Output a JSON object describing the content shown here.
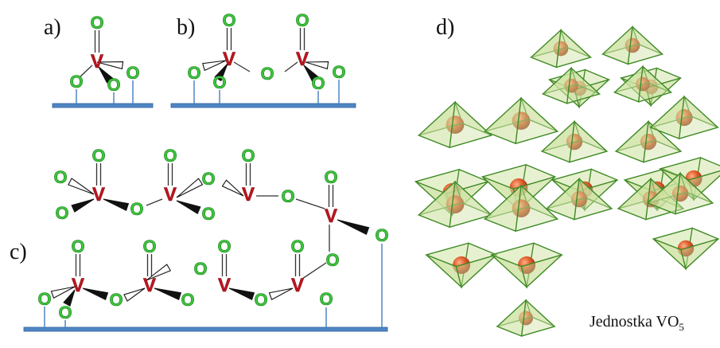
{
  "panels": {
    "a": "a)",
    "b": "b)",
    "c": "c)",
    "d": "d)"
  },
  "atoms": {
    "oxygen": "O",
    "vanadium": "V"
  },
  "legend": {
    "label_prefix": "Jednostka VO",
    "label_subscript": "5"
  },
  "colors": {
    "oxygen": "#3cc63c",
    "oxygen_outline": "#1e7a1e",
    "vanadium": "#c0141e",
    "surface": "#4f86c6",
    "surface_edge": "#2c5f9a",
    "bond": "#333333",
    "pyramid_fill": "#cfe3a3",
    "pyramid_edge": "#3f8a25",
    "v_sphere": "#d9572a"
  }
}
